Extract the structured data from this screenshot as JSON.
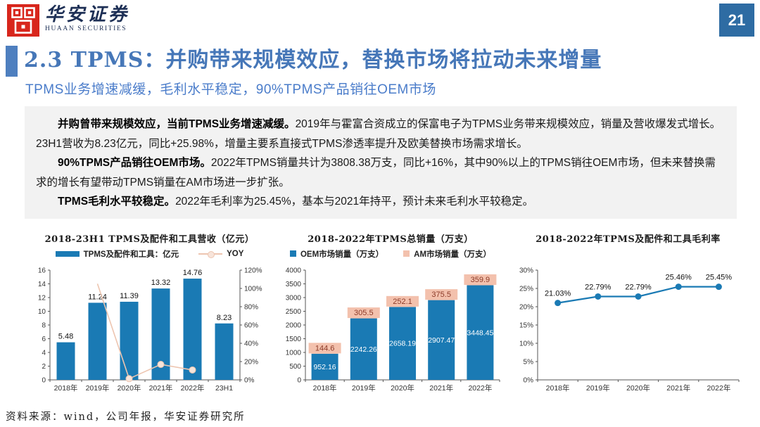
{
  "header": {
    "logo_cn": "华安证券",
    "logo_en": "HUAAN SECURITIES",
    "page_number": "21"
  },
  "title": {
    "heading": "2.3 TPMS：并购带来规模效应，替换市场将拉动未来增量",
    "subtitle": "TPMS业务增速减缓，毛利水平稳定，90%TPMS产品销往OEM市场"
  },
  "summary": {
    "paragraphs": [
      {
        "bold": "并购曾带来规模效应，当前TPMS业务增速减缓。",
        "text": "2019年与霍富合资成立的保富电子为TPMS业务带来规模效应，销量及营收爆发式增长。23H1营收为8.23亿元，同比+25.98%，增量主要系直接式TPMS渗透率提升及欧美替换市场需求增长。"
      },
      {
        "bold": "90%TPMS产品销往OEM市场。",
        "text": "2022年TPMS销量共计为3808.38万支，同比+16%，其中90%以上的TPMS销往OEM市场，但未来替换需求的增长有望带动TPMS销量在AM市场进一步扩张。"
      },
      {
        "bold": "TPMS毛利水平较稳定。",
        "text": "2022年毛利率为25.45%，基本与2021年持平，预计未来毛利水平较稳定。"
      }
    ]
  },
  "footer": {
    "source": "资料来源：wind，公司年报，华安证券研究所"
  },
  "colors": {
    "bar_blue": "#1a7ab4",
    "am_pink": "#f3c1ad",
    "yoy_peach": "#edc5b0",
    "yoy_marker_fill": "#f7e4da",
    "am_label_red": "#8c3a28",
    "accent_blue": "#4e7fbf",
    "title_blue": "#4677b8",
    "badge_blue": "#2e6ca3",
    "logo_red": "#d8261c",
    "summary_gray": "#f2f2f2"
  },
  "chart_data": [
    {
      "type": "bar",
      "title": "2018-23H1 TPMS及配件和工具营收（亿元）",
      "categories": [
        "2018年",
        "2019年",
        "2020年",
        "2021年",
        "2022年",
        "23H1"
      ],
      "series": [
        {
          "name": "TPMS及配件和工具：亿元",
          "type": "bar",
          "axis": "left",
          "values": [
            5.48,
            11.24,
            11.39,
            13.32,
            14.76,
            8.23
          ],
          "labels": [
            "5.48",
            "11.24",
            "11.39",
            "13.32",
            "14.76",
            "8.23"
          ]
        },
        {
          "name": "YOY",
          "type": "line",
          "axis": "right",
          "values": [
            null,
            105.1,
            1.3,
            16.9,
            10.8,
            null
          ]
        }
      ],
      "left_axis": {
        "min": 0,
        "max": 16,
        "step": 2,
        "suffix": ""
      },
      "right_axis": {
        "min": 0,
        "max": 120,
        "step": 20,
        "suffix": "%"
      },
      "grid": false,
      "legend_position": "top"
    },
    {
      "type": "bar",
      "subtype": "stacked",
      "title": "2018-2022年TPMS总销量（万支）",
      "categories": [
        "2018年",
        "2019年",
        "2020年",
        "2021年",
        "2022年"
      ],
      "series": [
        {
          "name": "OEM市场销量（万支）",
          "values": [
            952.16,
            2242.26,
            2658.19,
            2907.47,
            3448.45
          ],
          "labels": [
            "952.16",
            "2242.26",
            "2658.19",
            "2907.47",
            "3448.45"
          ]
        },
        {
          "name": "AM市场销量（万支）",
          "values": [
            144.6,
            305.5,
            252.1,
            375.5,
            359.9
          ],
          "labels": [
            "144.6",
            "305.5",
            "252.1",
            "375.5",
            "359.9"
          ]
        }
      ],
      "left_axis": {
        "min": 0,
        "max": 4000,
        "step": 500,
        "suffix": ""
      },
      "grid": false,
      "legend_position": "top"
    },
    {
      "type": "line",
      "title": "2018-2022年TPMS及配件和工具毛利率",
      "categories": [
        "2018年",
        "2019年",
        "2020年",
        "2021年",
        "2022年"
      ],
      "values": [
        21.03,
        22.79,
        22.79,
        25.46,
        25.45
      ],
      "labels": [
        "21.03%",
        "22.79%",
        "22.79%",
        "25.46%",
        "25.45%"
      ],
      "left_axis": {
        "min": 0,
        "max": 30,
        "step": 5,
        "suffix": "%"
      },
      "grid": false,
      "legend_position": "none"
    }
  ]
}
